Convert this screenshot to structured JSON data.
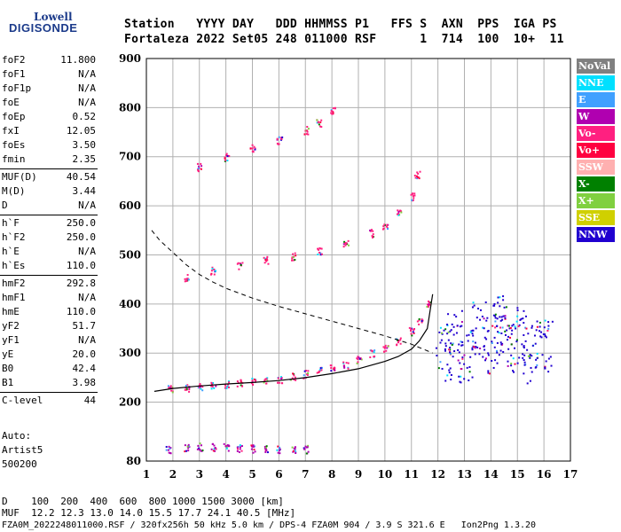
{
  "logo": {
    "line1": "Lowell",
    "line2": "DIGISONDE"
  },
  "header": {
    "row1": "Station   YYYY DAY   DDD HHMMSS P1   FFS S  AXN  PPS  IGA PS",
    "row2": "Fortaleza 2022 Set05 248 011000 RSF      1  714  100  10+  11"
  },
  "parameters": [
    {
      "name": "foF2",
      "value": "11.800"
    },
    {
      "name": "foF1",
      "value": "N/A"
    },
    {
      "name": "foF1p",
      "value": "N/A"
    },
    {
      "name": "foE",
      "value": "N/A"
    },
    {
      "name": "foEp",
      "value": "0.52"
    },
    {
      "name": "fxI",
      "value": "12.05"
    },
    {
      "name": "foEs",
      "value": "3.50"
    },
    {
      "name": "fmin",
      "value": "2.35"
    },
    {
      "name": "MUF(D)",
      "value": "40.54"
    },
    {
      "name": "M(D)",
      "value": "3.44"
    },
    {
      "name": "D",
      "value": "N/A"
    },
    {
      "name": "h`F",
      "value": "250.0"
    },
    {
      "name": "h`F2",
      "value": "250.0"
    },
    {
      "name": "h`E",
      "value": "N/A"
    },
    {
      "name": "h`Es",
      "value": "110.0"
    },
    {
      "name": "hmF2",
      "value": "292.8"
    },
    {
      "name": "hmF1",
      "value": "N/A"
    },
    {
      "name": "hmE",
      "value": "110.0"
    },
    {
      "name": "yF2",
      "value": "51.7"
    },
    {
      "name": "yF1",
      "value": "N/A"
    },
    {
      "name": "yE",
      "value": "20.0"
    },
    {
      "name": "B0",
      "value": "42.4"
    },
    {
      "name": "B1",
      "value": "3.98"
    },
    {
      "name": "C-level",
      "value": "44"
    }
  ],
  "autoscaling": {
    "line1": "Auto:",
    "line2": "Artist5",
    "line3": "500200"
  },
  "legend": [
    {
      "label": "NoVal",
      "color": "#808080"
    },
    {
      "label": "NNE",
      "color": "#00e0ff"
    },
    {
      "label": "E",
      "color": "#40a0ff"
    },
    {
      "label": "W",
      "color": "#b000b0"
    },
    {
      "label": "Vo-",
      "color": "#ff2080"
    },
    {
      "label": "Vo+",
      "color": "#ff0040"
    },
    {
      "label": "SSW",
      "color": "#ffb0b0"
    },
    {
      "label": "X-",
      "color": "#008000"
    },
    {
      "label": "X+",
      "color": "#80d040"
    },
    {
      "label": "SSE",
      "color": "#d0d000"
    },
    {
      "label": "NNW",
      "color": "#2000d0"
    }
  ],
  "footer": {
    "row_d": "D    100  200  400  600  800 1000 1500 3000 [km]",
    "row_muf": "MUF  12.2 12.3 13.0 14.0 15.5 17.7 24.1 40.5 [MHz]",
    "row_file": "FZA0M_2022248011000.RSF / 320fx256h 50 kHz 5.0 km / DPS-4 FZA0M 904 / 3.9 S 321.6 E   Ion2Png 1.3.20"
  },
  "chart_data": {
    "type": "scatter",
    "xlim": [
      1,
      17
    ],
    "ylim": [
      80,
      900
    ],
    "xticks": [
      1,
      2,
      3,
      4,
      5,
      6,
      7,
      8,
      9,
      10,
      11,
      12,
      13,
      14,
      15,
      16,
      17
    ],
    "yticks": [
      80,
      200,
      300,
      400,
      500,
      600,
      700,
      800,
      900
    ],
    "grid": true,
    "traces": [
      {
        "name": "F-trace O",
        "color": "#ff2080",
        "x": [
          1.9,
          2.5,
          3.0,
          3.5,
          4.0,
          4.5,
          5.0,
          5.5,
          6.0,
          6.5,
          7.0,
          7.5,
          8.0,
          8.5,
          9.0,
          9.5,
          10.0,
          10.5,
          11.0,
          11.3,
          11.6
        ],
        "y": [
          228,
          230,
          233,
          236,
          238,
          240,
          242,
          245,
          248,
          252,
          258,
          264,
          270,
          278,
          288,
          300,
          312,
          326,
          345,
          365,
          400
        ]
      },
      {
        "name": "2F-trace",
        "color": "#ff2080",
        "x": [
          2.5,
          3.5,
          4.5,
          5.5,
          6.5,
          7.5,
          8.5,
          9.5,
          10.0,
          10.5,
          11.0,
          11.2
        ],
        "y": [
          455,
          468,
          480,
          490,
          498,
          510,
          522,
          545,
          560,
          585,
          620,
          665
        ]
      },
      {
        "name": "3F-trace",
        "color": "#ff2080",
        "x": [
          3.0,
          4.0,
          5.0,
          6.0,
          7.0,
          7.5,
          8.0
        ],
        "y": [
          680,
          700,
          718,
          735,
          755,
          770,
          795
        ]
      },
      {
        "name": "Es-trace",
        "color": "#b000b0",
        "x": [
          1.8,
          2.5,
          3.0,
          3.5,
          4.0,
          4.5,
          5.0,
          5.5,
          6.0,
          6.5,
          7.0
        ],
        "y": [
          105,
          108,
          110,
          110,
          109,
          107,
          106,
          106,
          105,
          105,
          105
        ]
      },
      {
        "name": "spread-F",
        "color": "#2000d0",
        "x": [
          12.2,
          12.6,
          13.0,
          13.5,
          14.0,
          14.3,
          14.6,
          15.0,
          15.5,
          16.0
        ],
        "y": [
          305,
          330,
          300,
          350,
          320,
          360,
          310,
          340,
          300,
          315
        ]
      }
    ],
    "profile_solid": {
      "x": [
        1.3,
        2,
        3,
        4,
        5,
        6,
        7,
        8,
        9,
        10,
        10.5,
        11,
        11.3,
        11.6,
        11.8
      ],
      "y": [
        222,
        228,
        233,
        237,
        240,
        244,
        250,
        258,
        268,
        283,
        293,
        308,
        325,
        350,
        420
      ]
    },
    "profile_dashed": {
      "x": [
        1.2,
        1.5,
        2,
        2.5,
        3,
        3.5,
        4,
        5,
        6,
        7,
        8,
        9,
        10,
        11,
        11.8
      ],
      "y": [
        550,
        530,
        505,
        480,
        460,
        445,
        432,
        412,
        395,
        380,
        365,
        350,
        335,
        318,
        300
      ]
    }
  }
}
